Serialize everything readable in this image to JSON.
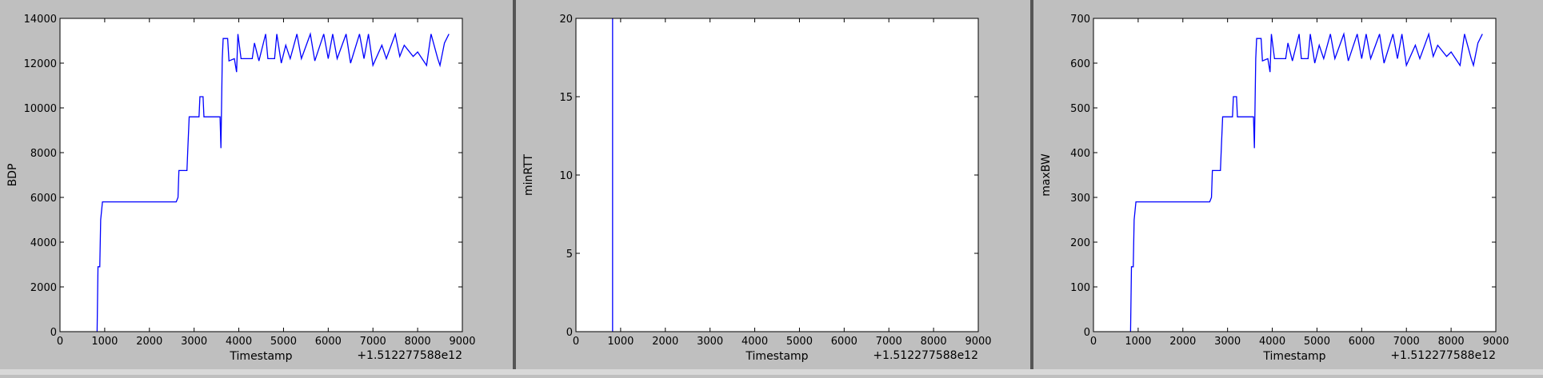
{
  "chart_data": [
    {
      "type": "line",
      "xlabel": "Timestamp",
      "ylabel": "BDP",
      "x_offset_label": "+1.512277588e12",
      "xlim": [
        0,
        9000
      ],
      "xticks": [
        0,
        1000,
        2000,
        3000,
        4000,
        5000,
        6000,
        7000,
        8000,
        9000
      ],
      "ylim": [
        0,
        14000
      ],
      "yticks": [
        0,
        2000,
        4000,
        6000,
        8000,
        10000,
        12000,
        14000
      ],
      "series": [
        {
          "color": "#0000ff",
          "x": [
            830,
            850,
            890,
            910,
            950,
            2600,
            2640,
            2660,
            2840,
            2860,
            2890,
            3110,
            3130,
            3200,
            3220,
            3580,
            3600,
            3630,
            3650,
            3750,
            3780,
            3900,
            3950,
            3980,
            4050,
            4300,
            4350,
            4450,
            4600,
            4650,
            4800,
            4850,
            4950,
            5050,
            5150,
            5300,
            5400,
            5600,
            5700,
            5900,
            6000,
            6100,
            6200,
            6400,
            6500,
            6700,
            6800,
            6900,
            7000,
            7200,
            7300,
            7500,
            7600,
            7700,
            7900,
            8000,
            8200,
            8300,
            8450,
            8500,
            8600,
            8700
          ],
          "values": [
            0,
            2900,
            2900,
            5000,
            5800,
            5800,
            6000,
            7200,
            7200,
            8200,
            9600,
            9600,
            10500,
            10500,
            9600,
            9600,
            8200,
            12200,
            13100,
            13100,
            12100,
            12200,
            11600,
            13300,
            12200,
            12200,
            12900,
            12100,
            13300,
            12200,
            12200,
            13300,
            12000,
            12800,
            12200,
            13300,
            12200,
            13300,
            12100,
            13300,
            12200,
            13300,
            12200,
            13300,
            12000,
            13300,
            12200,
            13300,
            11900,
            12800,
            12200,
            13300,
            12300,
            12800,
            12300,
            12500,
            11900,
            13300,
            12200,
            11900,
            12900,
            13300
          ]
        }
      ]
    },
    {
      "type": "line",
      "xlabel": "Timestamp",
      "ylabel": "minRTT",
      "x_offset_label": "+1.512277588e12",
      "xlim": [
        0,
        9000
      ],
      "xticks": [
        0,
        1000,
        2000,
        3000,
        4000,
        5000,
        6000,
        7000,
        8000,
        9000
      ],
      "ylim": [
        0,
        20
      ],
      "yticks": [
        0,
        5,
        10,
        15,
        20
      ],
      "series": [
        {
          "color": "#0000ff",
          "x": [
            820,
            820
          ],
          "values": [
            0,
            20
          ]
        }
      ]
    },
    {
      "type": "line",
      "xlabel": "Timestamp",
      "ylabel": "maxBW",
      "x_offset_label": "+1.512277588e12",
      "xlim": [
        0,
        9000
      ],
      "xticks": [
        0,
        1000,
        2000,
        3000,
        4000,
        5000,
        6000,
        7000,
        8000,
        9000
      ],
      "ylim": [
        0,
        700
      ],
      "yticks": [
        0,
        100,
        200,
        300,
        400,
        500,
        600,
        700
      ],
      "series": [
        {
          "color": "#0000ff",
          "x": [
            830,
            850,
            890,
            910,
            950,
            2600,
            2640,
            2660,
            2840,
            2860,
            2890,
            3110,
            3130,
            3200,
            3220,
            3580,
            3600,
            3630,
            3650,
            3750,
            3780,
            3900,
            3950,
            3980,
            4050,
            4300,
            4350,
            4450,
            4600,
            4650,
            4800,
            4850,
            4950,
            5050,
            5150,
            5300,
            5400,
            5600,
            5700,
            5900,
            6000,
            6100,
            6200,
            6400,
            6500,
            6700,
            6800,
            6900,
            7000,
            7200,
            7300,
            7500,
            7600,
            7700,
            7900,
            8000,
            8200,
            8300,
            8450,
            8500,
            8600,
            8700
          ],
          "values": [
            0,
            145,
            145,
            250,
            290,
            290,
            300,
            360,
            360,
            410,
            480,
            480,
            525,
            525,
            480,
            480,
            410,
            610,
            655,
            655,
            605,
            610,
            580,
            665,
            610,
            610,
            645,
            605,
            665,
            610,
            610,
            665,
            600,
            640,
            610,
            665,
            610,
            665,
            605,
            665,
            610,
            665,
            610,
            665,
            600,
            665,
            610,
            665,
            595,
            640,
            610,
            665,
            615,
            640,
            615,
            625,
            595,
            665,
            610,
            595,
            645,
            665
          ]
        }
      ]
    }
  ]
}
